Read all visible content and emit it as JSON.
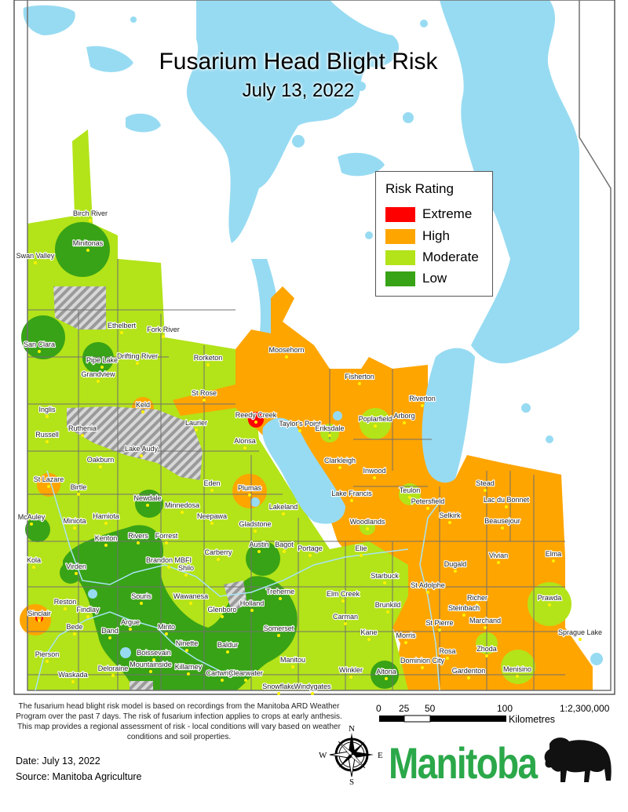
{
  "title": "Fusarium Head Blight Risk",
  "subtitle": "July 13, 2022",
  "legend": {
    "title": "Risk Rating",
    "items": [
      {
        "label": "Extreme",
        "color": "#FF0000"
      },
      {
        "label": "High",
        "color": "#FFA500"
      },
      {
        "label": "Moderate",
        "color": "#B3E319"
      },
      {
        "label": "Low",
        "color": "#38A316"
      }
    ]
  },
  "colors": {
    "water": "#97DBF2",
    "boundary": "#707070",
    "town_dot": "#FFF200",
    "logo_green": "#2BA84A"
  },
  "towns": [
    "Birch River",
    "Minitonas",
    "Swan Valley",
    "Ethelbert",
    "Fork River",
    "San Clara",
    "Drifting River",
    "Pipe Lake",
    "Grandview",
    "Rorketon",
    "St Rose",
    "Keld",
    "Inglis",
    "Laurier",
    "Reedy Creek",
    "Taylor's Point",
    "Eriksdale",
    "Moosehorn",
    "Fisherton",
    "Riverton",
    "Poplarfield",
    "Arborg",
    "Ruthenia",
    "Russell",
    "Lake Audy",
    "Alonsa",
    "Oakburn",
    "Clarkleigh",
    "Inwood",
    "St Lazare",
    "Birtle",
    "Eden",
    "Plumas",
    "Lake Francis",
    "Teulon",
    "Stead",
    "Lac du Bonnet",
    "Petersfield",
    "Newdale",
    "Minnedosa",
    "Lakeland",
    "Selkirk",
    "Beausejour",
    "McAuley",
    "Miniota",
    "Hamiota",
    "Neepawa",
    "Gladstone",
    "Woodlands",
    "Kenton",
    "Rivers",
    "Forrest",
    "Austin",
    "Bagot",
    "Portage",
    "Elie",
    "Vivian",
    "Elma",
    "Dugald",
    "Kola",
    "Virden",
    "Brandon MBFI",
    "Carberry",
    "Shilo",
    "Starbuck",
    "St Adolphe",
    "Prawda",
    "Elm Creek",
    "Richer",
    "Brunkild",
    "Steinbach",
    "Reston",
    "Findlay",
    "Souris",
    "Wawanesa",
    "Treherne",
    "Holland",
    "Glenboro",
    "Carman",
    "Marchand",
    "Sinclair",
    "Bede",
    "Argue",
    "Dand",
    "Minto",
    "Somerset",
    "Kane",
    "Morris",
    "St Pierre",
    "Sprague Lake",
    "Ninette",
    "Baldur",
    "Boissevain",
    "Rosa",
    "Zhoda",
    "Dominion City",
    "Pierson",
    "Deloraine",
    "Mountainside",
    "Killarney",
    "Manitou",
    "Cartwright",
    "Clearwater",
    "Winkler",
    "Altona",
    "Gardenton",
    "Menisino",
    "Waskada",
    "Snowflake",
    "Windygates"
  ],
  "note": "The fusarium head blight risk model is based on recordings from the Manitoba ARD Weather Program over the past 7 days. The risk of fusarium infection applies to crops at early anthesis. This map provides a regional assessment of risk - local conditions will vary based on weather conditions and soil properties.",
  "date_line": "Date: July 13, 2022",
  "source_line": "Source: Manitoba Agriculture",
  "scale": {
    "ticks": [
      "0",
      "25",
      "50",
      "100"
    ],
    "unit": "Kilometres",
    "ratio": "1:2,300,000"
  },
  "compass": {
    "n": "N",
    "s": "S",
    "e": "E",
    "w": "W"
  },
  "logo": "Manitoba"
}
